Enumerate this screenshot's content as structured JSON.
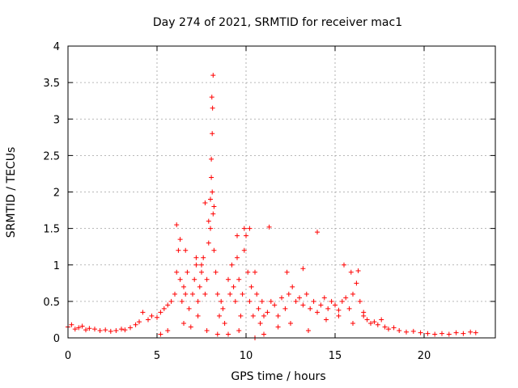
{
  "chart_data": {
    "type": "scatter",
    "title": "Day 274 of 2021, SRMTID for receiver mac1",
    "xlabel": "GPS time / hours",
    "ylabel": "SRMTID / TECUs",
    "xlim": [
      0,
      24
    ],
    "ylim": [
      0,
      4
    ],
    "xticks": [
      0,
      5,
      10,
      15,
      20
    ],
    "xtick_labels": [
      "0",
      "5",
      "10",
      "15",
      "20"
    ],
    "yticks": [
      0,
      0.5,
      1,
      1.5,
      2,
      2.5,
      3,
      3.5,
      4
    ],
    "ytick_labels": [
      "0",
      "0.5",
      "1",
      "1.5",
      "2",
      "2.5",
      "3",
      "3.5",
      "4"
    ],
    "grid": true,
    "marker": "+",
    "series": [
      {
        "name": "SRMTID",
        "color": "#ff0000",
        "x": [
          0.0,
          0.2,
          0.4,
          0.6,
          0.8,
          1.0,
          1.2,
          1.5,
          1.8,
          2.1,
          2.4,
          2.7,
          3.0,
          3.2,
          3.5,
          3.8,
          4.0,
          4.2,
          4.5,
          4.7,
          5.0,
          5.2,
          5.4,
          5.6,
          5.8,
          6.0,
          6.1,
          6.2,
          6.3,
          6.4,
          6.5,
          6.6,
          6.7,
          6.8,
          7.0,
          7.1,
          7.2,
          7.3,
          7.4,
          7.5,
          7.6,
          7.7,
          7.8,
          7.9,
          8.0,
          8.05,
          8.1,
          8.15,
          8.2,
          8.3,
          8.4,
          8.5,
          8.6,
          8.7,
          8.8,
          9.0,
          9.1,
          9.2,
          9.3,
          9.4,
          9.5,
          9.6,
          9.7,
          9.8,
          9.9,
          10.0,
          10.1,
          10.2,
          10.3,
          10.4,
          10.5,
          10.6,
          10.7,
          10.8,
          10.9,
          11.0,
          11.2,
          11.4,
          11.6,
          11.8,
          12.0,
          12.2,
          12.4,
          12.6,
          12.8,
          13.0,
          13.2,
          13.4,
          13.6,
          13.8,
          14.0,
          14.2,
          14.4,
          14.6,
          14.8,
          15.0,
          15.2,
          15.4,
          15.6,
          15.8,
          16.0,
          16.2,
          16.4,
          16.6,
          16.8,
          17.0,
          17.2,
          17.4,
          17.6,
          17.8,
          18.0,
          18.3,
          18.6,
          19.0,
          19.4,
          19.8,
          20.2,
          20.6,
          21.0,
          21.4,
          21.8,
          22.2,
          22.6,
          22.9,
          6.1,
          6.3,
          6.6,
          7.2,
          7.5,
          7.7,
          7.9,
          8.05,
          8.1,
          8.12,
          8.15,
          8.08,
          8.0,
          8.2,
          9.5,
          9.9,
          10.2,
          11.3,
          12.3,
          13.2,
          14.0,
          15.5,
          15.9,
          16.3,
          5.2,
          5.6,
          6.5,
          6.9,
          7.3,
          7.8,
          8.4,
          9.0,
          9.6,
          10.5,
          11.0,
          11.8,
          12.5,
          13.5,
          14.5,
          15.2,
          16.0,
          16.6
        ],
        "y": [
          0.15,
          0.18,
          0.12,
          0.14,
          0.16,
          0.11,
          0.13,
          0.12,
          0.1,
          0.11,
          0.09,
          0.1,
          0.12,
          0.11,
          0.14,
          0.18,
          0.22,
          0.35,
          0.25,
          0.3,
          0.28,
          0.35,
          0.4,
          0.45,
          0.5,
          0.6,
          0.9,
          1.2,
          0.8,
          0.5,
          0.7,
          0.6,
          0.9,
          0.4,
          0.6,
          0.8,
          1.0,
          0.5,
          0.7,
          0.9,
          1.1,
          0.6,
          0.8,
          1.3,
          1.5,
          2.2,
          2.0,
          1.7,
          1.2,
          0.9,
          0.6,
          0.3,
          0.5,
          0.4,
          0.2,
          0.8,
          0.6,
          1.0,
          0.7,
          0.5,
          1.1,
          0.8,
          0.3,
          0.6,
          1.2,
          1.4,
          0.9,
          0.5,
          0.7,
          0.3,
          0.9,
          0.6,
          0.4,
          0.2,
          0.5,
          0.3,
          0.35,
          0.5,
          0.45,
          0.3,
          0.55,
          0.4,
          0.6,
          0.7,
          0.5,
          0.55,
          0.45,
          0.6,
          0.4,
          0.5,
          0.35,
          0.45,
          0.55,
          0.4,
          0.5,
          0.45,
          0.38,
          0.5,
          0.55,
          0.4,
          0.6,
          0.75,
          0.5,
          0.35,
          0.25,
          0.2,
          0.22,
          0.18,
          0.25,
          0.15,
          0.12,
          0.14,
          0.1,
          0.08,
          0.09,
          0.07,
          0.06,
          0.05,
          0.06,
          0.05,
          0.07,
          0.06,
          0.08,
          0.07,
          1.55,
          1.35,
          1.2,
          1.1,
          1.0,
          1.85,
          1.6,
          2.45,
          2.8,
          3.15,
          3.6,
          3.3,
          1.9,
          1.8,
          1.4,
          1.5,
          1.5,
          1.52,
          0.9,
          0.95,
          1.45,
          1.0,
          0.9,
          0.92,
          0.05,
          0.1,
          0.2,
          0.15,
          0.3,
          0.1,
          0.05,
          0.05,
          0.1,
          0.0,
          0.05,
          0.15,
          0.2,
          0.1,
          0.25,
          0.3,
          0.2,
          0.3
        ]
      }
    ]
  }
}
